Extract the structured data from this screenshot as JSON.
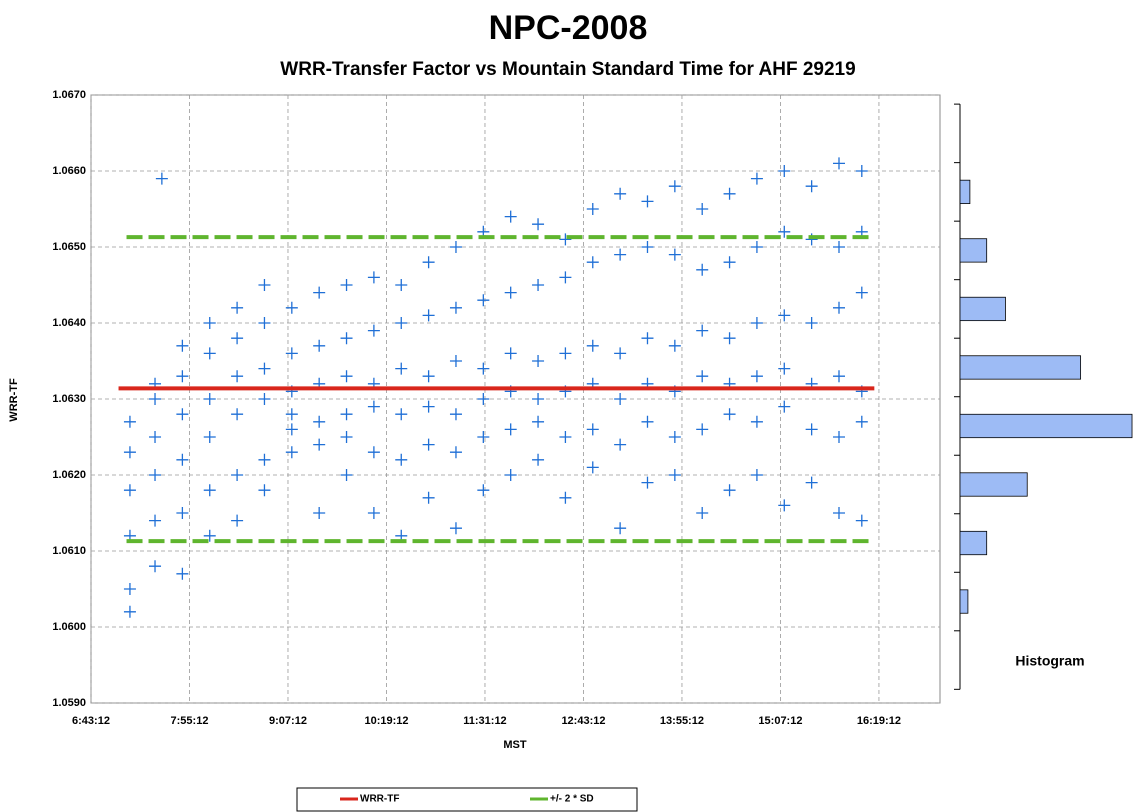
{
  "chart_data": [
    {
      "type": "scatter",
      "title": "NPC-2008",
      "subtitle": "WRR-Transfer Factor vs Mountain Standard Time for AHF 29219",
      "xlabel": "MST",
      "ylabel": "WRR-TF",
      "xlim": [
        24192,
        61430
      ],
      "xticks": [
        {
          "value": 24192,
          "label": "6:43:12"
        },
        {
          "value": 28512,
          "label": "7:55:12"
        },
        {
          "value": 32832,
          "label": "9:07:12"
        },
        {
          "value": 37152,
          "label": "10:19:12"
        },
        {
          "value": 41472,
          "label": "11:31:12"
        },
        {
          "value": 45792,
          "label": "12:43:12"
        },
        {
          "value": 50112,
          "label": "13:55:12"
        },
        {
          "value": 54432,
          "label": "15:07:12"
        },
        {
          "value": 58752,
          "label": "16:19:12"
        }
      ],
      "ylim": [
        1.059,
        1.067
      ],
      "yticks": [
        {
          "value": 1.059,
          "label": "1.0590"
        },
        {
          "value": 1.06,
          "label": "1.0600"
        },
        {
          "value": 1.061,
          "label": "1.0610"
        },
        {
          "value": 1.062,
          "label": "1.0620"
        },
        {
          "value": 1.063,
          "label": "1.0630"
        },
        {
          "value": 1.064,
          "label": "1.0640"
        },
        {
          "value": 1.065,
          "label": "1.0650"
        },
        {
          "value": 1.066,
          "label": "1.0660"
        },
        {
          "value": 1.067,
          "label": "1.0670"
        }
      ],
      "grid": true,
      "points": {
        "color": "#1f6fd6",
        "marker": "+",
        "x": [
          25900,
          25900,
          25900,
          25900,
          25900,
          25900,
          27000,
          27000,
          27000,
          27000,
          27000,
          27000,
          28200,
          28200,
          28200,
          28200,
          28200,
          28200,
          29400,
          29400,
          29400,
          29400,
          29400,
          29400,
          30600,
          30600,
          30600,
          30600,
          30600,
          30600,
          31800,
          31800,
          31800,
          31800,
          31800,
          31800,
          33000,
          33000,
          33000,
          33000,
          33000,
          33000,
          34200,
          34200,
          34200,
          34200,
          34200,
          34200,
          35400,
          35400,
          35400,
          35400,
          35400,
          35400,
          36600,
          36600,
          36600,
          36600,
          36600,
          36600,
          37800,
          37800,
          37800,
          37800,
          37800,
          37800,
          39000,
          39000,
          39000,
          39000,
          39000,
          39000,
          40200,
          40200,
          40200,
          40200,
          40200,
          40200,
          41400,
          41400,
          41400,
          41400,
          41400,
          41400,
          42600,
          42600,
          42600,
          42600,
          42600,
          42600,
          43800,
          43800,
          43800,
          43800,
          43800,
          43800,
          45000,
          45000,
          45000,
          45000,
          45000,
          45000,
          46200,
          46200,
          46200,
          46200,
          46200,
          46200,
          47400,
          47400,
          47400,
          47400,
          47400,
          47400,
          48600,
          48600,
          48600,
          48600,
          48600,
          48600,
          49800,
          49800,
          49800,
          49800,
          49800,
          49800,
          51000,
          51000,
          51000,
          51000,
          51000,
          51000,
          52200,
          52200,
          52200,
          52200,
          52200,
          52200,
          53400,
          53400,
          53400,
          53400,
          53400,
          53400,
          54600,
          54600,
          54600,
          54600,
          54600,
          54600,
          55800,
          55800,
          55800,
          55800,
          55800,
          55800,
          57000,
          57000,
          57000,
          57000,
          57000,
          57000,
          58000,
          58000,
          58000,
          58000,
          58000,
          58000,
          27300
        ],
        "values": [
          1.0623,
          1.0605,
          1.0618,
          1.0612,
          1.0627,
          1.0602,
          1.063,
          1.062,
          1.0608,
          1.0625,
          1.0614,
          1.0632,
          1.0633,
          1.0622,
          1.0615,
          1.0628,
          1.0607,
          1.0637,
          1.0636,
          1.0625,
          1.0618,
          1.063,
          1.0612,
          1.064,
          1.0638,
          1.0628,
          1.062,
          1.0633,
          1.0614,
          1.0642,
          1.064,
          1.063,
          1.0622,
          1.0634,
          1.0618,
          1.0645,
          1.0642,
          1.0631,
          1.0623,
          1.0636,
          1.0626,
          1.0628,
          1.0644,
          1.0632,
          1.0624,
          1.0637,
          1.0627,
          1.0615,
          1.0645,
          1.0633,
          1.0625,
          1.0638,
          1.0628,
          1.062,
          1.0646,
          1.0632,
          1.0623,
          1.0639,
          1.0629,
          1.0615,
          1.0645,
          1.0634,
          1.0622,
          1.064,
          1.0628,
          1.0612,
          1.0648,
          1.0633,
          1.0624,
          1.0641,
          1.0629,
          1.0617,
          1.065,
          1.0635,
          1.0623,
          1.0642,
          1.0628,
          1.0613,
          1.0652,
          1.0634,
          1.0625,
          1.0643,
          1.063,
          1.0618,
          1.0654,
          1.0636,
          1.0626,
          1.0644,
          1.0631,
          1.062,
          1.0653,
          1.0635,
          1.0627,
          1.0645,
          1.063,
          1.0622,
          1.0651,
          1.0636,
          1.0625,
          1.0646,
          1.0631,
          1.0617,
          1.0655,
          1.0637,
          1.0626,
          1.0648,
          1.0632,
          1.0621,
          1.0657,
          1.0636,
          1.0624,
          1.0649,
          1.063,
          1.0613,
          1.0656,
          1.0638,
          1.0627,
          1.065,
          1.0632,
          1.0619,
          1.0658,
          1.0637,
          1.0625,
          1.0649,
          1.0631,
          1.062,
          1.0655,
          1.0639,
          1.0626,
          1.0647,
          1.0633,
          1.0615,
          1.0657,
          1.0638,
          1.0628,
          1.0648,
          1.0632,
          1.0618,
          1.0659,
          1.064,
          1.0627,
          1.065,
          1.0633,
          1.062,
          1.066,
          1.0641,
          1.0629,
          1.0652,
          1.0634,
          1.0616,
          1.0658,
          1.064,
          1.0626,
          1.0651,
          1.0632,
          1.0619,
          1.0661,
          1.0642,
          1.0625,
          1.065,
          1.0633,
          1.0615,
          1.066,
          1.0644,
          1.0627,
          1.0652,
          1.0631,
          1.0614,
          1.0659
        ]
      },
      "series": [
        {
          "name": "WRR-TF",
          "color": "#d9261c",
          "x": [
            25400,
            58550
          ],
          "values": [
            1.06314,
            1.06314
          ]
        },
        {
          "name": "+/- 2 * SD",
          "color": "#5fb52e",
          "dashed": true,
          "x": [
            25750,
            58550,
            null,
            25750,
            58550
          ],
          "values": [
            1.06513,
            1.06513,
            null,
            1.06113,
            1.06113
          ]
        }
      ]
    },
    {
      "type": "histogram",
      "label": "Histogram",
      "orientation": "horizontal",
      "color": "#9dbbf5",
      "bins": [
        1.05918,
        1.05995,
        1.06072,
        1.06149,
        1.06226,
        1.06303,
        1.0638,
        1.06457,
        1.06534,
        1.06611,
        1.06688
      ],
      "counts": [
        0,
        8,
        27,
        68,
        174,
        122,
        46,
        27,
        10,
        0
      ],
      "xlim": [
        0,
        176
      ],
      "ylim": [
        1.059,
        1.067
      ]
    }
  ]
}
